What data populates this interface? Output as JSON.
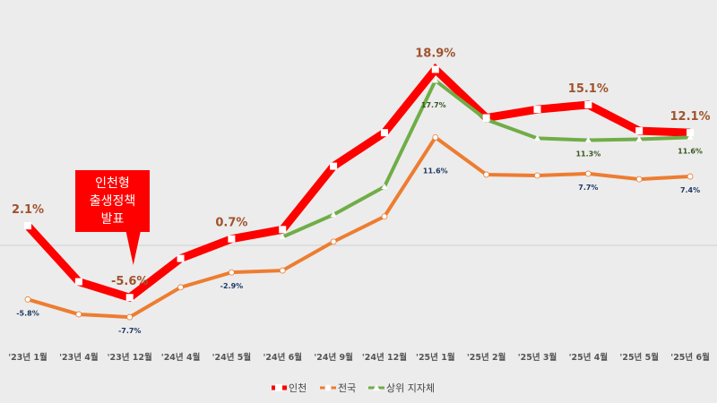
{
  "chart_data": {
    "type": "line",
    "categories": [
      "'23년 1월",
      "'23년 4월",
      "'23년 12월",
      "'24년 4월",
      "'24년 5월",
      "'24년 6월",
      "'24년 9월",
      "'24년 12월",
      "'25년 1월",
      "'25년 2월",
      "'25년 3월",
      "'25년 4월",
      "'25년 5월",
      "'25년 6월"
    ],
    "series": [
      {
        "name": "인천",
        "color": "#ff0000",
        "values": [
          2.1,
          -3.9,
          -5.6,
          -1.4,
          0.7,
          1.7,
          8.5,
          12.1,
          18.9,
          13.7,
          14.6,
          15.1,
          12.3,
          12.1
        ],
        "labels": {
          "0": "2.1%",
          "2": "-5.6%",
          "4": "0.7%",
          "8": "18.9%",
          "11": "15.1%",
          "13": "12.1%"
        }
      },
      {
        "name": "전국",
        "color": "#ed7d31",
        "values": [
          -5.8,
          -7.4,
          -7.7,
          -4.5,
          -2.9,
          -2.7,
          0.4,
          3.1,
          11.6,
          7.6,
          7.5,
          7.7,
          7.1,
          7.4
        ],
        "labels": {
          "0": "-5.8%",
          "2": "-7.7%",
          "4": "-2.9%",
          "8": "11.6%",
          "11": "7.7%",
          "13": "7.4%"
        }
      },
      {
        "name": "상위 지자체",
        "color": "#70ad47",
        "start_index": 5,
        "values": [
          null,
          null,
          null,
          null,
          null,
          0.9,
          3.3,
          6.3,
          17.7,
          13.5,
          11.5,
          11.3,
          11.4,
          11.6
        ],
        "labels": {
          "8": "17.7%",
          "11": "11.3%",
          "13": "11.6%"
        }
      }
    ],
    "annotation": {
      "lines": [
        "인천형",
        "출생정책",
        "발표"
      ],
      "at_category": "'23년 12월",
      "color": "#ff0000"
    },
    "legend_position": "bottom-center",
    "grid": false
  }
}
